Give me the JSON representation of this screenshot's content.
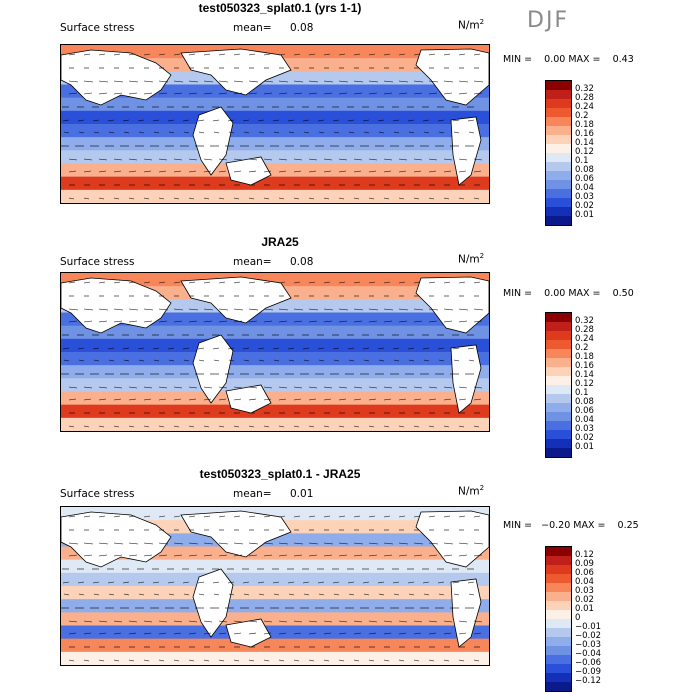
{
  "season": "DJF",
  "units": "N/m",
  "units_exp": "2",
  "panels": [
    {
      "title": "test050323_splat0.1 (yrs 1-1)",
      "variable": "Surface stress",
      "mean_label": "mean=",
      "mean_value": "0.08",
      "minmax": "MIN =    0.00 MAX =    0.43",
      "colorbar_labels": [
        "0.32",
        "0.28",
        "0.24",
        "0.2",
        "0.18",
        "0.16",
        "0.14",
        "0.12",
        "0.1",
        "0.08",
        "0.06",
        "0.04",
        "0.03",
        "0.02",
        "0.01"
      ],
      "colorbar_colors": [
        "#8b0000",
        "#c0201a",
        "#dd3a1e",
        "#ee5a30",
        "#f7875a",
        "#fab08c",
        "#fcd2b8",
        "#fdf0e6",
        "#dfe9f6",
        "#b5c9ef",
        "#8fadeb",
        "#6f92e5",
        "#4a6fe0",
        "#2a4fd8",
        "#1530b8",
        "#0a1a8a"
      ]
    },
    {
      "title": "JRA25",
      "variable": "Surface stress",
      "mean_label": "mean=",
      "mean_value": "0.08",
      "minmax": "MIN =    0.00 MAX =    0.50",
      "colorbar_labels": [
        "0.32",
        "0.28",
        "0.24",
        "0.2",
        "0.18",
        "0.16",
        "0.14",
        "0.12",
        "0.1",
        "0.08",
        "0.06",
        "0.04",
        "0.03",
        "0.02",
        "0.01"
      ],
      "colorbar_colors": [
        "#8b0000",
        "#c0201a",
        "#dd3a1e",
        "#ee5a30",
        "#f7875a",
        "#fab08c",
        "#fcd2b8",
        "#fdf0e6",
        "#dfe9f6",
        "#b5c9ef",
        "#8fadeb",
        "#6f92e5",
        "#4a6fe0",
        "#2a4fd8",
        "#1530b8",
        "#0a1a8a"
      ]
    },
    {
      "title": "test050323_splat0.1 - JRA25",
      "variable": "Surface stress",
      "mean_label": "mean=",
      "mean_value": "0.01",
      "minmax": "MIN =   −0.20 MAX =    0.25",
      "colorbar_labels": [
        "0.12",
        "0.09",
        "0.06",
        "0.04",
        "0.03",
        "0.02",
        "0.01",
        "0",
        "−0.01",
        "−0.02",
        "−0.03",
        "−0.04",
        "−0.06",
        "−0.09",
        "−0.12"
      ],
      "colorbar_colors": [
        "#8b0000",
        "#c0201a",
        "#dd3a1e",
        "#ee5a30",
        "#f7875a",
        "#fab08c",
        "#fcd2b8",
        "#fdf0e6",
        "#dfe9f6",
        "#b5c9ef",
        "#8fadeb",
        "#6f92e5",
        "#4a6fe0",
        "#2a4fd8",
        "#1530b8",
        "#0a1a8a"
      ]
    }
  ]
}
